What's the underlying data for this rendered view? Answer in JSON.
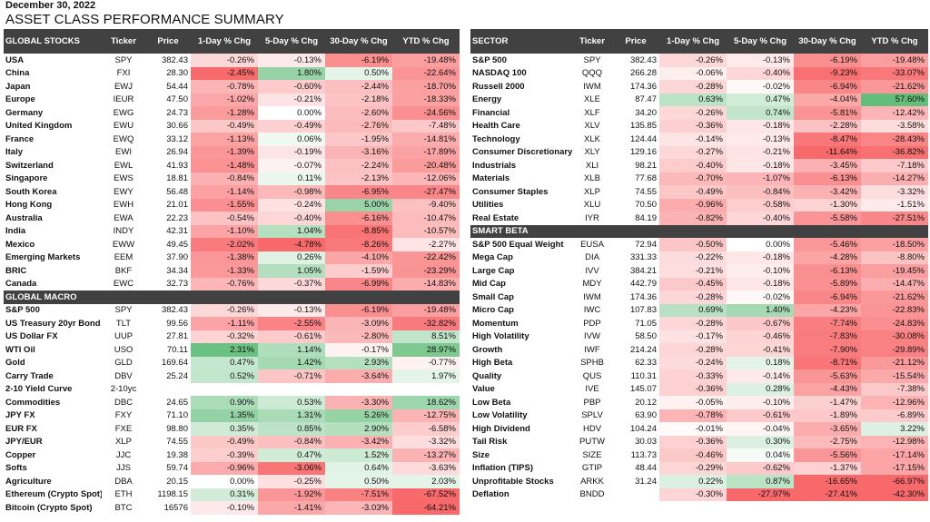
{
  "date": "December 30, 2022",
  "title": "ASSET CLASS PERFORMANCE SUMMARY",
  "colors": {
    "header_bg": "#414141",
    "header_fg": "#ffffff"
  },
  "columns": {
    "ticker": "Ticker",
    "price": "Price",
    "d1": "1-Day % Chg",
    "d5": "5-Day % Chg",
    "d30": "30-Day % Chg",
    "ytd": "YTD % Chg"
  },
  "left": {
    "heading": "GLOBAL STOCKS",
    "global_stocks": [
      [
        "USA",
        "SPY",
        "382.43",
        "-0.26%",
        "-0.13%",
        "-6.19%",
        "-19.48%"
      ],
      [
        "China",
        "FXI",
        "28.30",
        "-2.45%",
        "1.80%",
        "0.50%",
        "-22.64%"
      ],
      [
        "Japan",
        "EWJ",
        "54.44",
        "-0.78%",
        "-0.60%",
        "-2.44%",
        "-18.70%"
      ],
      [
        "Europe",
        "IEUR",
        "47.50",
        "-1.02%",
        "-0.21%",
        "-2.18%",
        "-18.33%"
      ],
      [
        "Germany",
        "EWG",
        "24.73",
        "-1.28%",
        "0.00%",
        "-2.60%",
        "-24.56%"
      ],
      [
        "United Kingdom",
        "EWU",
        "30.66",
        "-0.49%",
        "-0.49%",
        "-2.76%",
        "-7.48%"
      ],
      [
        "France",
        "EWQ",
        "33.12",
        "-1.13%",
        "0.06%",
        "-1.95%",
        "-14.81%"
      ],
      [
        "Italy",
        "EWI",
        "26.94",
        "-1.39%",
        "-0.19%",
        "-3.16%",
        "-17.89%"
      ],
      [
        "Switzerland",
        "EWL",
        "41.93",
        "-1.48%",
        "-0.07%",
        "-2.24%",
        "-20.48%"
      ],
      [
        "Singapore",
        "EWS",
        "18.81",
        "-0.84%",
        "0.11%",
        "-2.13%",
        "-12.06%"
      ],
      [
        "South Korea",
        "EWY",
        "56.48",
        "-1.14%",
        "-0.98%",
        "-6.95%",
        "-27.47%"
      ],
      [
        "Hong Kong",
        "EWH",
        "21.01",
        "-1.55%",
        "-0.24%",
        "5.00%",
        "-9.40%"
      ],
      [
        "Australia",
        "EWA",
        "22.23",
        "-0.54%",
        "-0.40%",
        "-6.16%",
        "-10.47%"
      ],
      [
        "India",
        "INDY",
        "42.31",
        "-1.10%",
        "1.04%",
        "-8.85%",
        "-10.57%"
      ],
      [
        "Mexico",
        "EWW",
        "49.45",
        "-2.02%",
        "-4.78%",
        "-8.26%",
        "-2.27%"
      ],
      [
        "Emerging Markets",
        "EEM",
        "37.90",
        "-1.38%",
        "0.26%",
        "-4.10%",
        "-22.42%"
      ],
      [
        "BRIC",
        "BKF",
        "34.34",
        "-1.33%",
        "1.05%",
        "-1.59%",
        "-23.29%"
      ],
      [
        "Canada",
        "EWC",
        "32.73",
        "-0.76%",
        "-0.37%",
        "-6.99%",
        "-14.83%"
      ]
    ],
    "macro_heading": "GLOBAL MACRO",
    "global_macro": [
      [
        "S&P 500",
        "SPY",
        "382.43",
        "-0.26%",
        "-0.13%",
        "-6.19%",
        "-19.48%"
      ],
      [
        "US Treasury 20yr Bond",
        "TLT",
        "99.56",
        "-1.11%",
        "-2.55%",
        "-3.09%",
        "-32.82%"
      ],
      [
        "US Dollar FX",
        "UUP",
        "27.81",
        "-0.32%",
        "-0.61%",
        "-2.80%",
        "8.51%"
      ],
      [
        "WTI Oil",
        "USO",
        "70.11",
        "2.31%",
        "1.14%",
        "-0.17%",
        "28.97%"
      ],
      [
        "Gold",
        "GLD",
        "169.64",
        "0.47%",
        "1.42%",
        "2.93%",
        "-0.77%"
      ],
      [
        "Carry Trade",
        "DBV",
        "25.24",
        "0.52%",
        "-0.71%",
        "-3.64%",
        "1.97%"
      ],
      [
        "2-10 Yield Curve",
        "2-10yc",
        "",
        "",
        "",
        "",
        ""
      ],
      [
        "Commodities",
        "DBC",
        "24.65",
        "0.90%",
        "0.53%",
        "-3.30%",
        "18.62%"
      ],
      [
        "JPY FX",
        "FXY",
        "71.10",
        "1.35%",
        "1.31%",
        "5.26%",
        "-12.75%"
      ],
      [
        "EUR FX",
        "FXE",
        "98.80",
        "0.35%",
        "0.85%",
        "2.90%",
        "-6.58%"
      ],
      [
        "JPY/EUR",
        "XLP",
        "74.55",
        "-0.49%",
        "-0.84%",
        "-3.42%",
        "-3.32%"
      ],
      [
        "Copper",
        "JJC",
        "19.38",
        "-0.39%",
        "0.47%",
        "1.52%",
        "-13.27%"
      ],
      [
        "Softs",
        "JJS",
        "59.74",
        "-0.96%",
        "-3.06%",
        "0.64%",
        "-3.63%"
      ],
      [
        "Agriculture",
        "DBA",
        "20.15",
        "0.00%",
        "-0.25%",
        "0.50%",
        "2.03%"
      ],
      [
        "Ethereum (Crypto Spot)",
        "ETH",
        "1198.15",
        "0.31%",
        "-1.92%",
        "-7.51%",
        "-67.52%"
      ],
      [
        "Bitcoin (Crypto Spot)",
        "BTC",
        "16576",
        "-0.10%",
        "-1.41%",
        "-3.03%",
        "-64.21%"
      ]
    ]
  },
  "right": {
    "heading": "SECTOR",
    "sector": [
      [
        "S&P 500",
        "SPY",
        "382.43",
        "-0.26%",
        "-0.13%",
        "-6.19%",
        "-19.48%"
      ],
      [
        "NASDAQ 100",
        "QQQ",
        "266.28",
        "-0.06%",
        "-0.40%",
        "-9.23%",
        "-33.07%"
      ],
      [
        "Russell 2000",
        "IWM",
        "174.36",
        "-0.28%",
        "-0.02%",
        "-6.94%",
        "-21.62%"
      ],
      [
        "Energy",
        "XLE",
        "87.47",
        "0.63%",
        "0.47%",
        "-4.04%",
        "57.60%"
      ],
      [
        "Financial",
        "XLF",
        "34.20",
        "-0.26%",
        "0.74%",
        "-5.81%",
        "-12.42%"
      ],
      [
        "Health Care",
        "XLV",
        "135.85",
        "-0.36%",
        "-0.18%",
        "-2.28%",
        "-3.58%"
      ],
      [
        "Technology",
        "XLK",
        "124.44",
        "-0.14%",
        "-0.13%",
        "-8.47%",
        "-28.43%"
      ],
      [
        "Consumer Discretionary",
        "XLY",
        "129.16",
        "-0.27%",
        "-0.21%",
        "-11.64%",
        "-36.82%"
      ],
      [
        "Industrials",
        "XLI",
        "98.21",
        "-0.40%",
        "-0.18%",
        "-3.45%",
        "-7.18%"
      ],
      [
        "Materials",
        "XLB",
        "77.68",
        "-0.70%",
        "-1.07%",
        "-6.13%",
        "-14.27%"
      ],
      [
        "Consumer Staples",
        "XLP",
        "74.55",
        "-0.49%",
        "-0.84%",
        "-3.42%",
        "-3.32%"
      ],
      [
        "Utilities",
        "XLU",
        "70.50",
        "-0.96%",
        "-0.58%",
        "-1.30%",
        "-1.51%"
      ],
      [
        "Real Estate",
        "IYR",
        "84.19",
        "-0.82%",
        "-0.40%",
        "-5.58%",
        "-27.51%"
      ]
    ],
    "beta_heading": "SMART BETA",
    "smart_beta": [
      [
        "S&P 500 Equal Weight",
        "EUSA",
        "72.94",
        "-0.50%",
        "0.00%",
        "-5.46%",
        "-18.50%"
      ],
      [
        "Mega Cap",
        "DIA",
        "331.33",
        "-0.22%",
        "-0.18%",
        "-4.28%",
        "-8.80%"
      ],
      [
        "Large Cap",
        "IVV",
        "384.21",
        "-0.21%",
        "-0.10%",
        "-6.13%",
        "-19.45%"
      ],
      [
        "Mid Cap",
        "MDY",
        "442.79",
        "-0.45%",
        "-0.18%",
        "-5.89%",
        "-14.47%"
      ],
      [
        "Small Cap",
        "IWM",
        "174.36",
        "-0.28%",
        "-0.02%",
        "-6.94%",
        "-21.62%"
      ],
      [
        "Micro Cap",
        "IWC",
        "107.83",
        "0.69%",
        "1.40%",
        "-4.23%",
        "-22.83%"
      ],
      [
        "Momentum",
        "PDP",
        "71.05",
        "-0.28%",
        "-0.67%",
        "-7.74%",
        "-24.83%"
      ],
      [
        "High Volatility",
        "IVW",
        "58.50",
        "-0.17%",
        "-0.46%",
        "-7.83%",
        "-30.08%"
      ],
      [
        "Growth",
        "IWF",
        "214.24",
        "-0.28%",
        "-0.41%",
        "-7.90%",
        "-29.89%"
      ],
      [
        "High Beta",
        "SPHB",
        "62.33",
        "-0.24%",
        "0.18%",
        "-8.71%",
        "-21.12%"
      ],
      [
        "Quality",
        "QUS",
        "110.31",
        "-0.33%",
        "-0.14%",
        "-5.63%",
        "-15.54%"
      ],
      [
        "Value",
        "IVE",
        "145.07",
        "-0.36%",
        "0.28%",
        "-4.43%",
        "-7.38%"
      ],
      [
        "Low Beta",
        "PBP",
        "20.12",
        "-0.05%",
        "-0.10%",
        "-1.47%",
        "-12.96%"
      ],
      [
        "Low Volatility",
        "SPLV",
        "63.90",
        "-0.78%",
        "-0.61%",
        "-1.89%",
        "-6.89%"
      ],
      [
        "High Dividend",
        "HDV",
        "104.24",
        "-0.01%",
        "-0.04%",
        "-3.65%",
        "3.22%"
      ],
      [
        "Tail Risk",
        "PUTW",
        "30.03",
        "-0.36%",
        "0.30%",
        "-2.75%",
        "-12.98%"
      ],
      [
        "Size",
        "SIZE",
        "113.73",
        "-0.46%",
        "0.04%",
        "-5.56%",
        "-17.14%"
      ],
      [
        "Inflation (TIPS)",
        "GTIP",
        "48.44",
        "-0.29%",
        "-0.62%",
        "-1.37%",
        "-17.15%"
      ],
      [
        "Unprofitable Stocks",
        "ARKK",
        "31.24",
        "0.22%",
        "0.87%",
        "-16.65%",
        "-66.97%"
      ],
      [
        "Deflation",
        "BNDD",
        "",
        "-0.30%",
        "-27.97%",
        "-27.41%",
        "-42.30%"
      ]
    ]
  }
}
